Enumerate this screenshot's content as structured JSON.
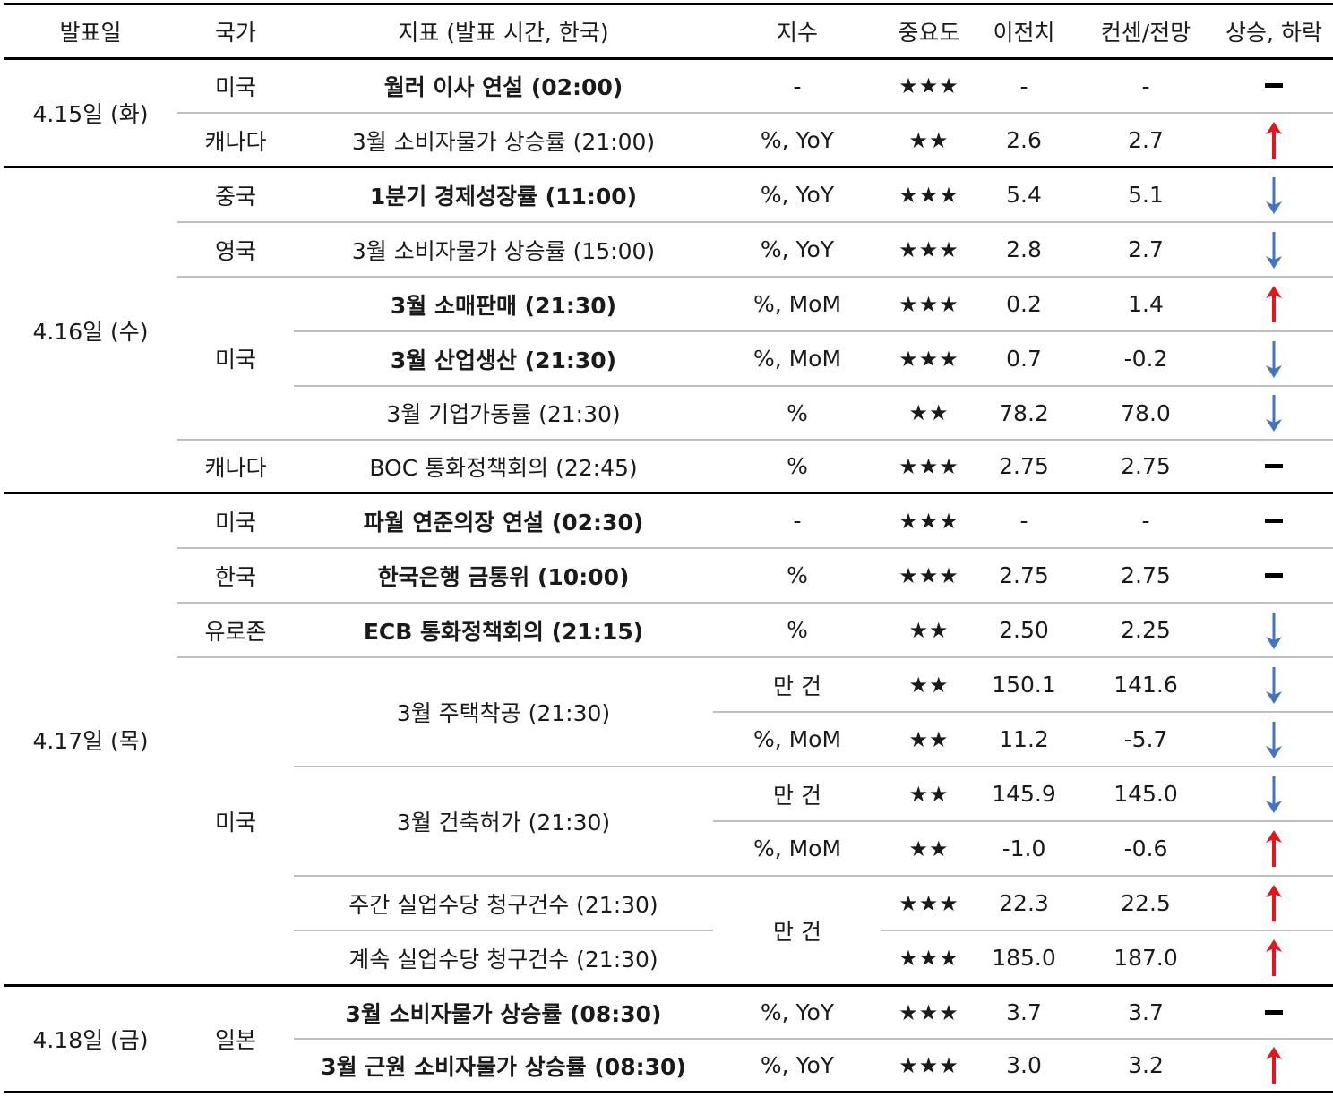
{
  "header": {
    "date": "발표일",
    "country": "국가",
    "indicator": "지표 (발표 시간, 한국)",
    "index": "지수",
    "importance": "중요도",
    "previous": "이전치",
    "consensus": "컨센/전망",
    "direction": "상승, 하락"
  },
  "dates": [
    "4.15일 (화)",
    "4.16일 (수)",
    "4.17일 (목)",
    "4.18일 (금)"
  ],
  "countries": [
    "미국",
    "캐나다",
    "중국",
    "영국",
    "미국",
    "캐나다",
    "미국",
    "한국",
    "유로존",
    "미국",
    "일본"
  ],
  "indicators": [
    "월러 이사 연설 (02:00)",
    "3월 소비자물가 상승률 (21:00)",
    "1분기 경제성장률 (11:00)",
    "3월 소비자물가 상승률 (15:00)",
    "3월 소매판매 (21:30)",
    "3월 산업생산 (21:30)",
    "3월 기업가동률 (21:30)",
    "BOC 통화정책회의 (22:45)",
    "파월 연준의장 연설 (02:30)",
    "한국은행 금통위 (10:00)",
    "ECB 통화정책회의 (21:15)",
    "3월 주택착공 (21:30)",
    "3월 건축허가 (21:30)",
    "주간 실업수당 청구건수 (21:30)",
    "계속 실업수당 청구건수 (21:30)",
    "3월 소비자물가 상승률 (08:30)",
    "3월 근원 소비자물가 상승률 (08:30)"
  ],
  "rows": [
    {
      "index": "-",
      "importance": "★★★",
      "previous": "-",
      "consensus": "-",
      "direction": "flat"
    },
    {
      "index": "%, YoY",
      "importance": "★★",
      "previous": "2.6",
      "consensus": "2.7",
      "direction": "up"
    },
    {
      "index": "%, YoY",
      "importance": "★★★",
      "previous": "5.4",
      "consensus": "5.1",
      "direction": "down"
    },
    {
      "index": "%, YoY",
      "importance": "★★★",
      "previous": "2.8",
      "consensus": "2.7",
      "direction": "down"
    },
    {
      "index": "%, MoM",
      "importance": "★★★",
      "previous": "0.2",
      "consensus": "1.4",
      "direction": "up"
    },
    {
      "index": "%, MoM",
      "importance": "★★★",
      "previous": "0.7",
      "consensus": "-0.2",
      "direction": "down"
    },
    {
      "index": "%",
      "importance": "★★",
      "previous": "78.2",
      "consensus": "78.0",
      "direction": "down"
    },
    {
      "index": "%",
      "importance": "★★★",
      "previous": "2.75",
      "consensus": "2.75",
      "direction": "flat"
    },
    {
      "index": "-",
      "importance": "★★★",
      "previous": "-",
      "consensus": "-",
      "direction": "flat"
    },
    {
      "index": "%",
      "importance": "★★★",
      "previous": "2.75",
      "consensus": "2.75",
      "direction": "flat"
    },
    {
      "index": "%",
      "importance": "★★",
      "previous": "2.50",
      "consensus": "2.25",
      "direction": "down"
    },
    {
      "index": "만 건",
      "importance": "★★",
      "previous": "150.1",
      "consensus": "141.6",
      "direction": "down"
    },
    {
      "index": "%, MoM",
      "importance": "★★",
      "previous": "11.2",
      "consensus": "-5.7",
      "direction": "down"
    },
    {
      "index": "만 건",
      "importance": "★★",
      "previous": "145.9",
      "consensus": "145.0",
      "direction": "down"
    },
    {
      "index": "%, MoM",
      "importance": "★★",
      "previous": "-1.0",
      "consensus": "-0.6",
      "direction": "up"
    },
    {
      "index": "만 건",
      "importance": "★★★",
      "previous": "22.3",
      "consensus": "22.5",
      "direction": "up"
    },
    {
      "index": "",
      "importance": "★★★",
      "previous": "185.0",
      "consensus": "187.0",
      "direction": "up"
    },
    {
      "index": "%, YoY",
      "importance": "★★★",
      "previous": "3.7",
      "consensus": "3.7",
      "direction": "flat"
    },
    {
      "index": "%, YoY",
      "importance": "★★★",
      "previous": "3.0",
      "consensus": "3.2",
      "direction": "up"
    }
  ],
  "colors": {
    "up": "#e8141b",
    "down": "#4472c4",
    "flat": "#000000"
  }
}
